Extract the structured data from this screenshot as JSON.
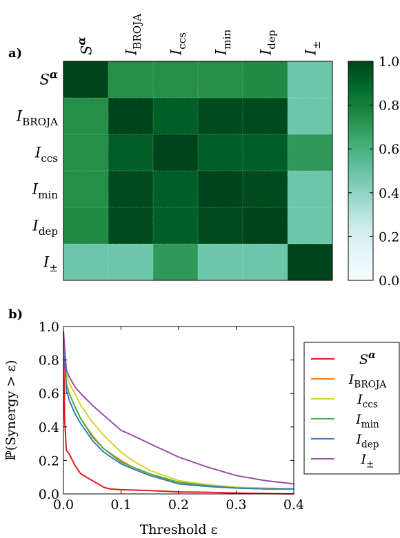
{
  "panel_labels": {
    "a": "a)",
    "b": "b)"
  },
  "chart_data": [
    {
      "type": "heatmap",
      "panel": "a)",
      "labels": [
        "S^α",
        "I_BROJA",
        "I_ccs",
        "I_min",
        "I_dep",
        "I_±"
      ],
      "values": [
        [
          1.0,
          0.74,
          0.74,
          0.74,
          0.76,
          0.48
        ],
        [
          0.74,
          1.0,
          0.92,
          0.98,
          0.98,
          0.48
        ],
        [
          0.74,
          0.92,
          1.0,
          0.92,
          0.92,
          0.7
        ],
        [
          0.74,
          0.98,
          0.92,
          1.0,
          0.98,
          0.48
        ],
        [
          0.76,
          0.98,
          0.92,
          0.98,
          1.0,
          0.48
        ],
        [
          0.48,
          0.48,
          0.7,
          0.48,
          0.48,
          1.0
        ]
      ],
      "colorbar": {
        "min": 0.0,
        "max": 1.0,
        "ticks": [
          "0.0",
          "0.2",
          "0.4",
          "0.6",
          "0.8",
          "1.0"
        ]
      },
      "colormap": [
        "#f7fcfd",
        "#e5f5f9",
        "#ccece6",
        "#99d8c9",
        "#66c2a4",
        "#41ae76",
        "#238b45",
        "#006d2c",
        "#00441b"
      ]
    },
    {
      "type": "line",
      "panel": "b)",
      "xlabel": "Threshold ε",
      "ylabel": "ℙ(Synergy > ε)",
      "xlim": [
        0.0,
        0.4
      ],
      "ylim": [
        0.0,
        1.0
      ],
      "xticks": [
        "0.0",
        "0.1",
        "0.2",
        "0.3",
        "0.4"
      ],
      "yticks": [
        "0.0",
        "0.2",
        "0.4",
        "0.6",
        "0.8",
        "1.0"
      ],
      "legend_position": "right",
      "series": [
        {
          "name": "S^α",
          "color": "#e41a1c",
          "x": [
            0,
            0.002,
            0.005,
            0.01,
            0.02,
            0.03,
            0.04,
            0.05,
            0.06,
            0.07,
            0.08,
            0.1,
            0.15,
            0.2,
            0.25,
            0.3,
            0.35,
            0.4
          ],
          "y": [
            0.97,
            0.45,
            0.26,
            0.24,
            0.17,
            0.12,
            0.1,
            0.08,
            0.06,
            0.04,
            0.03,
            0.025,
            0.02,
            0.012,
            0.01,
            0.005,
            0.002,
            0.0
          ]
        },
        {
          "name": "I_BROJA",
          "color": "#ff7f0e",
          "x": [
            0,
            0.005,
            0.01,
            0.02,
            0.03,
            0.05,
            0.07,
            0.1,
            0.12,
            0.15,
            0.2,
            0.25,
            0.3,
            0.35,
            0.4
          ],
          "y": [
            0.97,
            0.65,
            0.6,
            0.52,
            0.45,
            0.35,
            0.27,
            0.2,
            0.16,
            0.12,
            0.06,
            0.045,
            0.035,
            0.03,
            0.03
          ]
        },
        {
          "name": "I_ccs",
          "color": "#d4d42a",
          "x": [
            0,
            0.005,
            0.01,
            0.02,
            0.03,
            0.05,
            0.07,
            0.1,
            0.12,
            0.15,
            0.2,
            0.25,
            0.3,
            0.35,
            0.4
          ],
          "y": [
            0.97,
            0.72,
            0.66,
            0.6,
            0.53,
            0.43,
            0.35,
            0.25,
            0.2,
            0.14,
            0.08,
            0.055,
            0.04,
            0.035,
            0.03
          ]
        },
        {
          "name": "I_min",
          "color": "#4daf4a",
          "x": [
            0,
            0.005,
            0.01,
            0.02,
            0.03,
            0.05,
            0.07,
            0.1,
            0.12,
            0.15,
            0.2,
            0.25,
            0.3,
            0.35,
            0.4
          ],
          "y": [
            0.97,
            0.66,
            0.6,
            0.52,
            0.45,
            0.34,
            0.27,
            0.19,
            0.16,
            0.12,
            0.07,
            0.05,
            0.035,
            0.03,
            0.03
          ]
        },
        {
          "name": "I_dep",
          "color": "#377eb8",
          "x": [
            0,
            0.005,
            0.01,
            0.02,
            0.03,
            0.05,
            0.07,
            0.1,
            0.12,
            0.15,
            0.2,
            0.25,
            0.3,
            0.35,
            0.4
          ],
          "y": [
            0.97,
            0.62,
            0.56,
            0.48,
            0.42,
            0.32,
            0.25,
            0.18,
            0.15,
            0.11,
            0.06,
            0.045,
            0.035,
            0.03,
            0.03
          ]
        },
        {
          "name": "I_±",
          "color": "#984ea3",
          "x": [
            0,
            0.005,
            0.01,
            0.02,
            0.03,
            0.05,
            0.07,
            0.1,
            0.12,
            0.15,
            0.2,
            0.25,
            0.3,
            0.35,
            0.4
          ],
          "y": [
            0.97,
            0.74,
            0.7,
            0.64,
            0.6,
            0.53,
            0.47,
            0.38,
            0.35,
            0.3,
            0.22,
            0.16,
            0.11,
            0.08,
            0.06
          ]
        }
      ]
    }
  ]
}
